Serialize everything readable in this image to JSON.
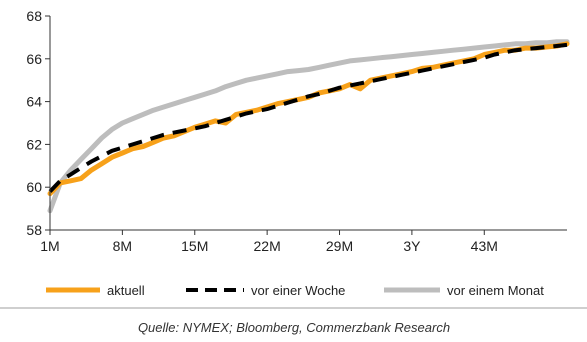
{
  "chart_data": {
    "type": "line",
    "title": "",
    "xlabel": "",
    "ylabel": "",
    "x_months": [
      1,
      2,
      3,
      4,
      5,
      6,
      7,
      8,
      9,
      10,
      11,
      12,
      13,
      14,
      15,
      16,
      17,
      18,
      19,
      20,
      21,
      22,
      23,
      24,
      25,
      26,
      27,
      28,
      29,
      30,
      31,
      32,
      33,
      34,
      35,
      36,
      37,
      38,
      39,
      40,
      41,
      42,
      43,
      44,
      45,
      46,
      47,
      48,
      49,
      50,
      51
    ],
    "x_tick_labels": [
      "1M",
      "8M",
      "15M",
      "22M",
      "29M",
      "3Y",
      "43M"
    ],
    "x_tick_months": [
      1,
      8,
      15,
      22,
      29,
      36,
      43
    ],
    "ylim": [
      58,
      68
    ],
    "y_ticks": [
      58,
      60,
      62,
      64,
      66,
      68
    ],
    "grid": false,
    "legend_position": "bottom",
    "series": [
      {
        "name": "aktuell",
        "color": "#F7A11A",
        "style": "solid",
        "values": [
          59.7,
          60.2,
          60.3,
          60.4,
          60.8,
          61.1,
          61.4,
          61.6,
          61.8,
          61.9,
          62.1,
          62.3,
          62.4,
          62.6,
          62.8,
          62.95,
          63.1,
          63.0,
          63.4,
          63.5,
          63.6,
          63.75,
          63.9,
          64.0,
          64.1,
          64.2,
          64.4,
          64.5,
          64.6,
          64.8,
          64.6,
          65.0,
          65.1,
          65.2,
          65.3,
          65.4,
          65.55,
          65.6,
          65.7,
          65.8,
          65.9,
          66.0,
          66.2,
          66.3,
          66.4,
          66.4,
          66.5,
          66.5,
          66.55,
          66.6,
          66.7
        ]
      },
      {
        "name": "vor einer Woche",
        "color": "#000000",
        "style": "dashed",
        "values": [
          59.8,
          60.3,
          60.6,
          60.9,
          61.2,
          61.45,
          61.7,
          61.85,
          62.0,
          62.15,
          62.3,
          62.45,
          62.55,
          62.65,
          62.75,
          62.85,
          63.0,
          63.15,
          63.3,
          63.45,
          63.55,
          63.65,
          63.8,
          63.95,
          64.1,
          64.25,
          64.35,
          64.5,
          64.65,
          64.75,
          64.85,
          64.95,
          65.05,
          65.15,
          65.25,
          65.35,
          65.45,
          65.55,
          65.65,
          65.75,
          65.85,
          65.95,
          66.05,
          66.2,
          66.3,
          66.4,
          66.45,
          66.5,
          66.55,
          66.6,
          66.65
        ]
      },
      {
        "name": "vor einem Monat",
        "color": "#BDBDBD",
        "style": "solid",
        "values": [
          58.9,
          60.2,
          60.8,
          61.3,
          61.8,
          62.3,
          62.7,
          63.0,
          63.2,
          63.4,
          63.6,
          63.75,
          63.9,
          64.05,
          64.2,
          64.35,
          64.5,
          64.7,
          64.85,
          65.0,
          65.1,
          65.2,
          65.3,
          65.4,
          65.45,
          65.5,
          65.6,
          65.7,
          65.8,
          65.9,
          65.95,
          66.0,
          66.05,
          66.1,
          66.15,
          66.2,
          66.25,
          66.3,
          66.35,
          66.4,
          66.45,
          66.5,
          66.55,
          66.6,
          66.65,
          66.7,
          66.7,
          66.75,
          66.75,
          66.8,
          66.8
        ]
      }
    ]
  },
  "source": "Quelle: NYMEX; Bloomberg, Commerzbank Research"
}
